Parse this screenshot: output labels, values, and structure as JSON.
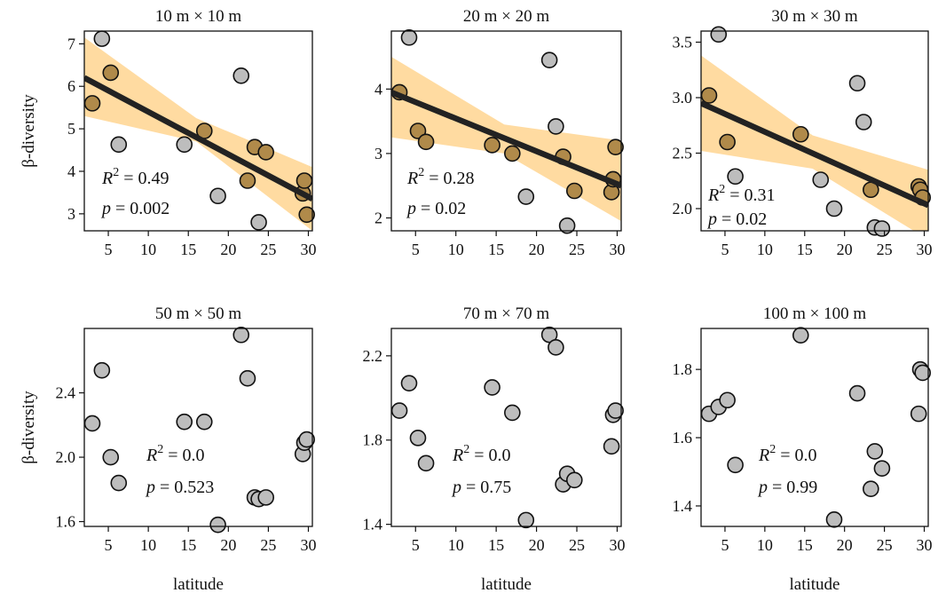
{
  "chart_data": [
    {
      "type": "scatter",
      "title": "10 m × 10 m",
      "xlabel": "",
      "ylabel": "β-diversity",
      "xlim": [
        2,
        30.5
      ],
      "ylim": [
        2.6,
        7.3
      ],
      "xticks": [
        5,
        10,
        15,
        20,
        25,
        30
      ],
      "yticks": [
        3,
        4,
        5,
        6,
        7
      ],
      "r2_label": "R",
      "r2_sup": "2",
      "r2_value": " = 0.49",
      "p_label": "p",
      "p_value": " = 0.002",
      "fit": {
        "x": [
          2,
          30.5
        ],
        "y": [
          6.2,
          3.35
        ]
      },
      "band": {
        "x": [
          2,
          16,
          30.5
        ],
        "upper": [
          7.15,
          5.25,
          4.1
        ],
        "lower": [
          5.3,
          4.7,
          2.6
        ]
      },
      "points": [
        {
          "x": 3.0,
          "y": 5.6
        },
        {
          "x": 4.2,
          "y": 7.12
        },
        {
          "x": 5.3,
          "y": 6.32
        },
        {
          "x": 6.3,
          "y": 4.63
        },
        {
          "x": 14.5,
          "y": 4.63
        },
        {
          "x": 17.0,
          "y": 4.95
        },
        {
          "x": 18.7,
          "y": 3.42
        },
        {
          "x": 21.6,
          "y": 6.25
        },
        {
          "x": 22.4,
          "y": 3.78
        },
        {
          "x": 23.3,
          "y": 4.57
        },
        {
          "x": 23.8,
          "y": 2.8
        },
        {
          "x": 24.7,
          "y": 4.45
        },
        {
          "x": 29.3,
          "y": 3.48
        },
        {
          "x": 29.5,
          "y": 3.78
        },
        {
          "x": 29.8,
          "y": 2.98
        }
      ]
    },
    {
      "type": "scatter",
      "title": "20 m × 20 m",
      "xlabel": "",
      "ylabel": "",
      "xlim": [
        2,
        30.5
      ],
      "ylim": [
        1.8,
        4.9
      ],
      "xticks": [
        5,
        10,
        15,
        20,
        25,
        30
      ],
      "yticks": [
        2,
        3,
        4
      ],
      "r2_label": "R",
      "r2_sup": "2",
      "r2_value": " = 0.28",
      "p_label": "p",
      "p_value": " = 0.02",
      "fit": {
        "x": [
          2,
          30.5
        ],
        "y": [
          3.95,
          2.5
        ]
      },
      "band": {
        "x": [
          2,
          16,
          30.5
        ],
        "upper": [
          4.5,
          3.45,
          3.2
        ],
        "lower": [
          3.25,
          3.0,
          1.95
        ]
      },
      "points": [
        {
          "x": 3.0,
          "y": 3.95
        },
        {
          "x": 4.2,
          "y": 4.8
        },
        {
          "x": 5.3,
          "y": 3.35
        },
        {
          "x": 6.3,
          "y": 3.18
        },
        {
          "x": 14.5,
          "y": 3.13
        },
        {
          "x": 17.0,
          "y": 3.0
        },
        {
          "x": 18.7,
          "y": 2.33
        },
        {
          "x": 21.6,
          "y": 4.45
        },
        {
          "x": 22.4,
          "y": 3.42
        },
        {
          "x": 23.3,
          "y": 2.95
        },
        {
          "x": 23.8,
          "y": 1.88
        },
        {
          "x": 24.7,
          "y": 2.42
        },
        {
          "x": 29.3,
          "y": 2.4
        },
        {
          "x": 29.5,
          "y": 2.6
        },
        {
          "x": 29.8,
          "y": 3.1
        }
      ]
    },
    {
      "type": "scatter",
      "title": "30 m × 30 m",
      "xlabel": "",
      "ylabel": "",
      "xlim": [
        2,
        30.5
      ],
      "ylim": [
        1.8,
        3.6
      ],
      "xticks": [
        5,
        10,
        15,
        20,
        25,
        30
      ],
      "yticks": [
        2.0,
        2.5,
        3.0,
        3.5
      ],
      "ytick_labels": [
        "2.0",
        "2.5",
        "3.0",
        "3.5"
      ],
      "r2_label": "R",
      "r2_sup": "2",
      "r2_value": " = 0.31",
      "p_label": "p",
      "p_value": " = 0.02",
      "fit": {
        "x": [
          2,
          30.5
        ],
        "y": [
          2.95,
          2.03
        ]
      },
      "band": {
        "x": [
          2,
          16,
          30.5
        ],
        "upper": [
          3.38,
          2.66,
          2.35
        ],
        "lower": [
          2.52,
          2.36,
          1.72
        ]
      },
      "points": [
        {
          "x": 3.0,
          "y": 3.02
        },
        {
          "x": 4.2,
          "y": 3.57
        },
        {
          "x": 5.3,
          "y": 2.6
        },
        {
          "x": 6.3,
          "y": 2.29
        },
        {
          "x": 14.5,
          "y": 2.67
        },
        {
          "x": 17.0,
          "y": 2.26
        },
        {
          "x": 18.7,
          "y": 2.0
        },
        {
          "x": 21.6,
          "y": 3.13
        },
        {
          "x": 22.4,
          "y": 2.78
        },
        {
          "x": 23.3,
          "y": 2.17
        },
        {
          "x": 23.8,
          "y": 1.83
        },
        {
          "x": 24.7,
          "y": 1.82
        },
        {
          "x": 29.3,
          "y": 2.2
        },
        {
          "x": 29.5,
          "y": 2.17
        },
        {
          "x": 29.8,
          "y": 2.1
        }
      ]
    },
    {
      "type": "scatter",
      "title": "50 m × 50 m",
      "xlabel": "latitude",
      "ylabel": "β-diversity",
      "xlim": [
        2,
        30.5
      ],
      "ylim": [
        1.57,
        2.8
      ],
      "xticks": [
        5,
        10,
        15,
        20,
        25,
        30
      ],
      "yticks": [
        1.6,
        2.0,
        2.4
      ],
      "ytick_labels": [
        "1.6",
        "2.0",
        "2.4"
      ],
      "r2_label": "R",
      "r2_sup": "2",
      "r2_value": " = 0.0",
      "p_label": "p",
      "p_value": " = 0.523",
      "points": [
        {
          "x": 3.0,
          "y": 2.21
        },
        {
          "x": 4.2,
          "y": 2.54
        },
        {
          "x": 5.3,
          "y": 2.0
        },
        {
          "x": 6.3,
          "y": 1.84
        },
        {
          "x": 14.5,
          "y": 2.22
        },
        {
          "x": 17.0,
          "y": 2.22
        },
        {
          "x": 18.7,
          "y": 1.58
        },
        {
          "x": 21.6,
          "y": 2.76
        },
        {
          "x": 22.4,
          "y": 2.49
        },
        {
          "x": 23.3,
          "y": 1.75
        },
        {
          "x": 23.8,
          "y": 1.74
        },
        {
          "x": 24.7,
          "y": 1.75
        },
        {
          "x": 29.3,
          "y": 2.02
        },
        {
          "x": 29.5,
          "y": 2.09
        },
        {
          "x": 29.8,
          "y": 2.11
        }
      ]
    },
    {
      "type": "scatter",
      "title": "70 m × 70 m",
      "xlabel": "latitude",
      "ylabel": "",
      "xlim": [
        2,
        30.5
      ],
      "ylim": [
        1.39,
        2.33
      ],
      "xticks": [
        5,
        10,
        15,
        20,
        25,
        30
      ],
      "yticks": [
        1.4,
        1.8,
        2.2
      ],
      "ytick_labels": [
        "1.4",
        "1.8",
        "2.2"
      ],
      "r2_label": "R",
      "r2_sup": "2",
      "r2_value": " = 0.0",
      "p_label": "p",
      "p_value": " = 0.75",
      "points": [
        {
          "x": 3.0,
          "y": 1.94
        },
        {
          "x": 4.2,
          "y": 2.07
        },
        {
          "x": 5.3,
          "y": 1.81
        },
        {
          "x": 6.3,
          "y": 1.69
        },
        {
          "x": 14.5,
          "y": 2.05
        },
        {
          "x": 17.0,
          "y": 1.93
        },
        {
          "x": 18.7,
          "y": 1.42
        },
        {
          "x": 21.6,
          "y": 2.3
        },
        {
          "x": 22.4,
          "y": 2.24
        },
        {
          "x": 23.3,
          "y": 1.59
        },
        {
          "x": 23.8,
          "y": 1.64
        },
        {
          "x": 24.7,
          "y": 1.61
        },
        {
          "x": 29.3,
          "y": 1.77
        },
        {
          "x": 29.5,
          "y": 1.92
        },
        {
          "x": 29.8,
          "y": 1.94
        }
      ]
    },
    {
      "type": "scatter",
      "title": "100 m × 100 m",
      "xlabel": "latitude",
      "ylabel": "",
      "xlim": [
        2,
        30.5
      ],
      "ylim": [
        1.34,
        1.92
      ],
      "xticks": [
        5,
        10,
        15,
        20,
        25,
        30
      ],
      "yticks": [
        1.4,
        1.6,
        1.8
      ],
      "ytick_labels": [
        "1.4",
        "1.6",
        "1.8"
      ],
      "r2_label": "R",
      "r2_sup": "2",
      "r2_value": " = 0.0",
      "p_label": "p",
      "p_value": " = 0.99",
      "points": [
        {
          "x": 3.0,
          "y": 1.67
        },
        {
          "x": 4.2,
          "y": 1.69
        },
        {
          "x": 5.3,
          "y": 1.71
        },
        {
          "x": 6.3,
          "y": 1.52
        },
        {
          "x": 14.5,
          "y": 1.9
        },
        {
          "x": 18.7,
          "y": 1.36
        },
        {
          "x": 21.6,
          "y": 1.73
        },
        {
          "x": 23.3,
          "y": 1.45
        },
        {
          "x": 23.8,
          "y": 1.56
        },
        {
          "x": 24.7,
          "y": 1.51
        },
        {
          "x": 29.3,
          "y": 1.67
        },
        {
          "x": 29.5,
          "y": 1.8
        },
        {
          "x": 29.8,
          "y": 1.79
        }
      ]
    }
  ],
  "colors": {
    "point_fill": "#bdbdbd",
    "point_fill_in_band": "#b08a4a",
    "point_stroke": "#111111",
    "band_fill": "#ffd590",
    "fit_line": "#222222"
  }
}
